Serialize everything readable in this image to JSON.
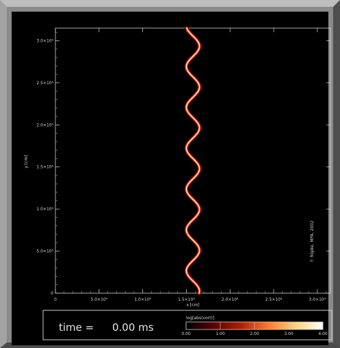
{
  "chart_data": {
    "type": "line",
    "title": "",
    "xlabel": "x [cm]",
    "ylabel": "y [cm]",
    "xlim": [
      0,
      31500
    ],
    "ylim": [
      0,
      31500
    ],
    "x_ticks": [
      {
        "v": 0,
        "label": "0"
      },
      {
        "v": 5000,
        "label": "5.0×10³"
      },
      {
        "v": 10000,
        "label": "1.0×10⁴"
      },
      {
        "v": 15000,
        "label": "1.5×10⁴"
      },
      {
        "v": 20000,
        "label": "2.0×10⁴"
      },
      {
        "v": 25000,
        "label": "2.5×10⁴"
      },
      {
        "v": 30000,
        "label": "3.0×10⁴"
      }
    ],
    "y_ticks": [
      {
        "v": 0,
        "label": "0"
      },
      {
        "v": 5000,
        "label": "5.0×10³"
      },
      {
        "v": 10000,
        "label": "1.0×10⁴"
      },
      {
        "v": 15000,
        "label": "1.5×10⁴"
      },
      {
        "v": 20000,
        "label": "2.0×10⁴"
      },
      {
        "v": 25000,
        "label": "2.5×10⁴"
      },
      {
        "v": 30000,
        "label": "3.0×10⁴"
      }
    ],
    "series": [
      {
        "center_x": 15750,
        "amplitude": 750,
        "wavelength": 4850,
        "y_range": [
          0,
          31500
        ]
      }
    ],
    "annotation": "F. Röpke, MPA, 2002"
  },
  "time": {
    "label": "time =",
    "value": "0.00 ms"
  },
  "colorbar": {
    "title": "log[abs(vort)]",
    "ticks": [
      "0.00",
      "1.00",
      "2.00",
      "3.00",
      "4.00"
    ],
    "colors": [
      "#000000",
      "#5a0000",
      "#b01e00",
      "#ff7a2a",
      "#ffd27a",
      "#ffffff"
    ]
  }
}
